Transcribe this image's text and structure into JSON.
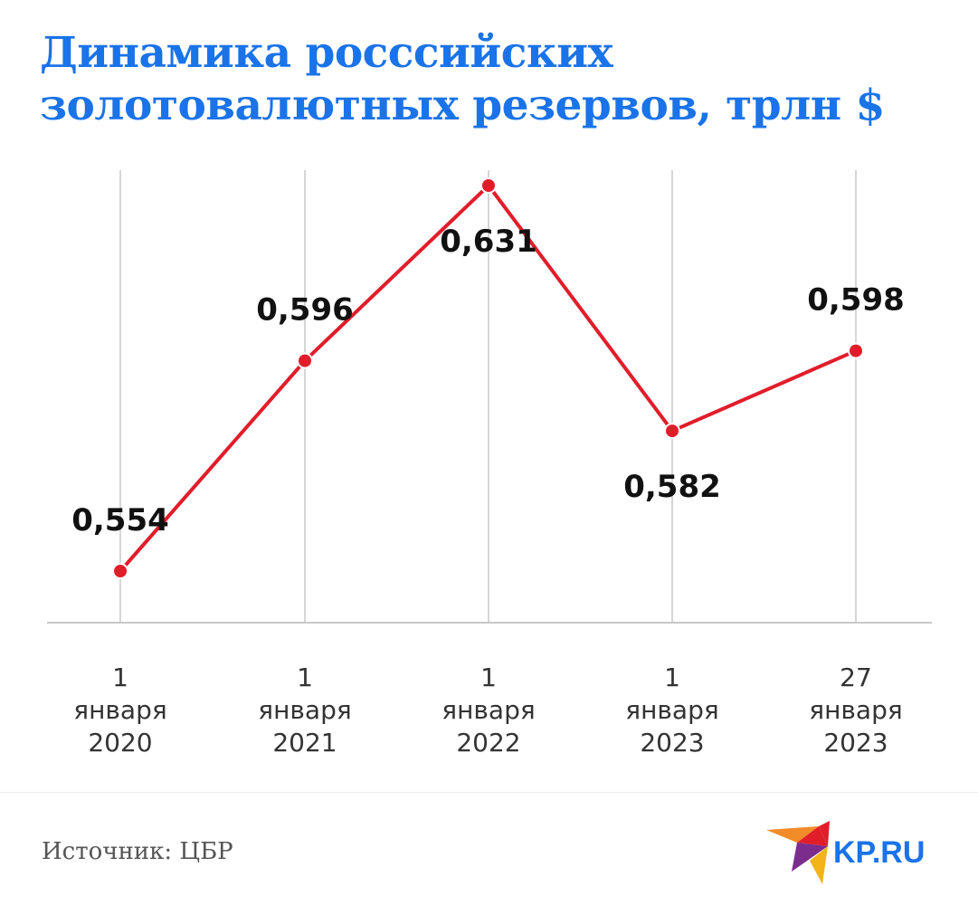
{
  "title": {
    "line1": "Динамика россcийских",
    "line2": "золотовалютных резервов, трлн $"
  },
  "source": "Источник: ЦБР",
  "logo": {
    "text": "KP.RU",
    "icon": "swallow-bird-icon"
  },
  "colors": {
    "title": "#1a73e8",
    "line": "#e11d2a",
    "grid": "#c8c8c8",
    "logo_text": "#1a73e8"
  },
  "chart_data": {
    "type": "line",
    "title": "Динамика россcийских золотовалютных резервов, трлн $",
    "xlabel": "",
    "ylabel": "",
    "grid": "vertical",
    "legend": "none",
    "categories": [
      [
        "1",
        "января",
        "2020"
      ],
      [
        "1",
        "января",
        "2021"
      ],
      [
        "1",
        "января",
        "2022"
      ],
      [
        "1",
        "января",
        "2023"
      ],
      [
        "27",
        "января",
        "2023"
      ]
    ],
    "values": [
      0.554,
      0.596,
      0.631,
      0.582,
      0.598
    ],
    "labels": [
      "0,554",
      "0,596",
      "0,631",
      "0,582",
      "0,598"
    ],
    "label_positions": [
      "above",
      "above",
      "below",
      "below",
      "above"
    ],
    "ylim": [
      0.54,
      0.636
    ]
  }
}
